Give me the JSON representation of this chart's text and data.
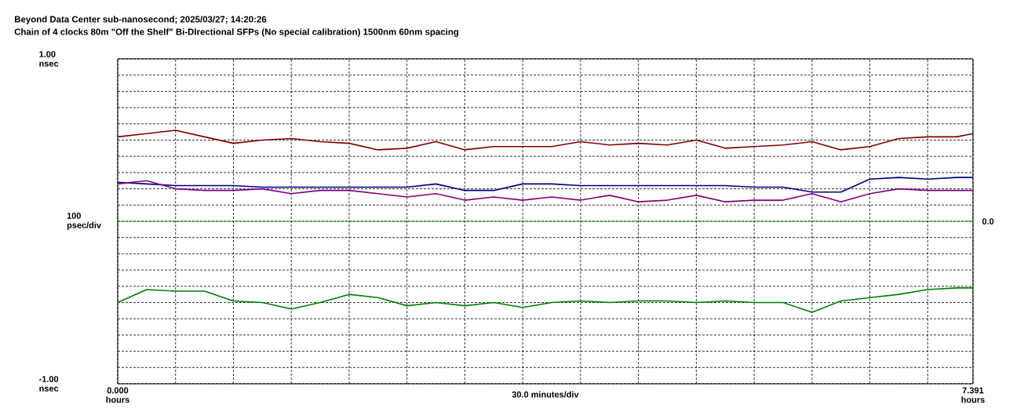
{
  "chart_data": {
    "type": "line",
    "title": "Beyond Data Center sub-nanosecond; 2025/03/27; 14:20:26",
    "subtitle": "Chain of 4 clocks 80m  \"Off the Shelf\" Bi-DIrectional SFPs (No special calibration) 1500nm 60nm spacing",
    "xlabel": "30.0 minutes/div",
    "ylabel": "100 psec/div",
    "x": [
      0,
      0.25,
      0.5,
      0.75,
      1.0,
      1.25,
      1.5,
      1.75,
      2.0,
      2.25,
      2.5,
      2.75,
      3.0,
      3.25,
      3.5,
      3.75,
      4.0,
      4.25,
      4.5,
      4.75,
      5.0,
      5.25,
      5.5,
      5.75,
      6.0,
      6.25,
      6.5,
      6.75,
      7.0,
      7.25,
      7.391
    ],
    "series": [
      {
        "color": "#800000",
        "values": [
          0.52,
          0.54,
          0.56,
          0.52,
          0.48,
          0.5,
          0.51,
          0.49,
          0.48,
          0.44,
          0.45,
          0.49,
          0.44,
          0.46,
          0.46,
          0.46,
          0.49,
          0.47,
          0.48,
          0.47,
          0.5,
          0.45,
          0.46,
          0.47,
          0.49,
          0.44,
          0.46,
          0.51,
          0.52,
          0.52,
          0.54
        ]
      },
      {
        "color": "#000080",
        "values": [
          0.24,
          0.23,
          0.22,
          0.22,
          0.22,
          0.21,
          0.21,
          0.21,
          0.21,
          0.21,
          0.21,
          0.23,
          0.19,
          0.19,
          0.23,
          0.23,
          0.22,
          0.22,
          0.22,
          0.22,
          0.22,
          0.22,
          0.21,
          0.21,
          0.18,
          0.18,
          0.26,
          0.27,
          0.26,
          0.27,
          0.27
        ]
      },
      {
        "color": "#800080",
        "values": [
          0.23,
          0.25,
          0.2,
          0.19,
          0.19,
          0.2,
          0.17,
          0.19,
          0.19,
          0.17,
          0.15,
          0.17,
          0.13,
          0.15,
          0.13,
          0.15,
          0.13,
          0.16,
          0.12,
          0.13,
          0.16,
          0.12,
          0.13,
          0.13,
          0.17,
          0.12,
          0.17,
          0.2,
          0.19,
          0.19,
          0.19
        ]
      },
      {
        "color": "#008000",
        "values": [
          -0.5,
          -0.42,
          -0.43,
          -0.43,
          -0.49,
          -0.5,
          -0.54,
          -0.5,
          -0.45,
          -0.47,
          -0.52,
          -0.5,
          -0.52,
          -0.5,
          -0.53,
          -0.5,
          -0.49,
          -0.5,
          -0.49,
          -0.49,
          -0.5,
          -0.49,
          -0.5,
          -0.5,
          -0.56,
          -0.49,
          -0.47,
          -0.45,
          -0.42,
          -0.41,
          -0.41
        ]
      }
    ],
    "xlim": [
      0,
      7.391
    ],
    "ylim": [
      -1,
      1
    ],
    "xticks": [
      {
        "value": 0,
        "label": "0.000 hours"
      },
      {
        "value": 0.5,
        "label": null
      },
      {
        "value": 1,
        "label": null
      },
      {
        "value": 1.5,
        "label": null
      },
      {
        "value": 2,
        "label": null
      },
      {
        "value": 2.5,
        "label": null
      },
      {
        "value": 3,
        "label": null
      },
      {
        "value": 3.5,
        "label": null
      },
      {
        "value": 4,
        "label": null
      },
      {
        "value": 4.5,
        "label": null
      },
      {
        "value": 5,
        "label": null
      },
      {
        "value": 5.5,
        "label": null
      },
      {
        "value": 6,
        "label": null
      },
      {
        "value": 6.5,
        "label": null
      },
      {
        "value": 7,
        "label": null
      },
      {
        "value": 7.391,
        "label": "7.391 hours"
      }
    ],
    "yticks": [
      {
        "value": -1,
        "label": "-1.00 nsec"
      },
      {
        "value": -0.9,
        "label": null
      },
      {
        "value": -0.8,
        "label": null
      },
      {
        "value": -0.7,
        "label": null
      },
      {
        "value": -0.6,
        "label": null
      },
      {
        "value": -0.5,
        "label": null
      },
      {
        "value": -0.4,
        "label": null
      },
      {
        "value": -0.3,
        "label": null
      },
      {
        "value": -0.2,
        "label": null
      },
      {
        "value": -0.1,
        "label": null
      },
      {
        "value": 0,
        "label": null
      },
      {
        "value": 0.1,
        "label": null
      },
      {
        "value": 0.2,
        "label": null
      },
      {
        "value": 0.3,
        "label": null
      },
      {
        "value": 0.4,
        "label": null
      },
      {
        "value": 0.5,
        "label": null
      },
      {
        "value": 0.6,
        "label": null
      },
      {
        "value": 0.7,
        "label": null
      },
      {
        "value": 0.8,
        "label": null
      },
      {
        "value": 0.9,
        "label": null
      },
      {
        "value": 1,
        "label": "1.00 nsec"
      }
    ],
    "ref_lines": [
      {
        "axis": "y",
        "value": 0,
        "label": "0.0",
        "color": "#00a000"
      }
    ],
    "grid": true
  }
}
